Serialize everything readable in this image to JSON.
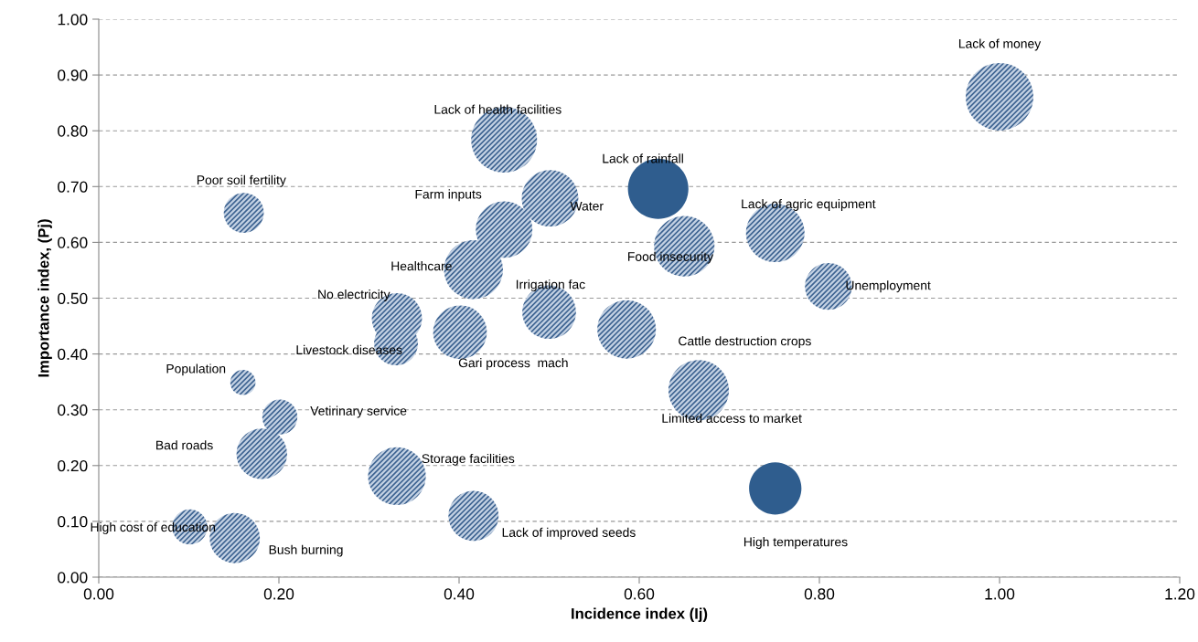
{
  "chart_data": {
    "type": "bubble",
    "xlabel": "Incidence index (Ij)",
    "ylabel": "Importance index, (Pj)",
    "x": [
      0.45,
      0.161,
      0.45,
      0.501,
      0.416,
      0.331,
      0.33,
      0.401,
      0.5,
      0.16,
      0.201,
      0.181,
      0.331,
      0.416,
      0.101,
      0.151,
      1.0,
      0.621,
      0.65,
      0.751,
      0.81,
      0.586,
      0.666,
      0.751
    ],
    "values": [
      0.784,
      0.653,
      0.623,
      0.679,
      0.551,
      0.464,
      0.419,
      0.439,
      0.475,
      0.349,
      0.287,
      0.221,
      0.181,
      0.11,
      0.09,
      0.07,
      0.861,
      0.696,
      0.593,
      0.617,
      0.521,
      0.444,
      0.335,
      0.159
    ],
    "sizes": [
      0.95,
      0.35,
      0.7,
      0.7,
      0.76,
      0.55,
      0.42,
      0.63,
      0.63,
      0.14,
      0.27,
      0.56,
      0.73,
      0.55,
      0.27,
      0.55,
      1,
      0.8,
      0.8,
      0.75,
      0.48,
      0.75,
      0.8,
      0.6
    ],
    "value_labels": [
      "Lack of health facilities",
      "Poor soil fertility",
      "Farm inputs",
      "Water",
      "Healthcare",
      "No electricity",
      "Livestock diseases",
      "Gari process  mach",
      "Irrigation fac",
      "Population",
      "Vetirinary service",
      "Bad roads",
      "Storage facilities",
      "Lack of improved seeds",
      "High cost of education",
      "Bush burning",
      "Lack of money",
      "Lack of rainfall",
      "Food insecurity",
      "Lack of agric equipment",
      "Unemployment",
      "Cattle destruction crops",
      "Limited access to market",
      "High temperatures"
    ],
    "colors": [
      "#c3d1e3",
      "#c3d1e3",
      "#c3d1e3",
      "#c3d1e3",
      "#c3d1e3",
      "#c3d1e3",
      "#c3d1e3",
      "#c3d1e3",
      "#c3d1e3",
      "#c3d1e3",
      "#c3d1e3",
      "#c3d1e3",
      "#c3d1e3",
      "#c3d1e3",
      "#c3d1e3",
      "#c3d1e3",
      "#c3d1e3",
      "#2f5d8e",
      "#c3d1e3",
      "#c3d1e3",
      "#c3d1e3",
      "#c3d1e3",
      "#c3d1e3",
      "#2f5d8e"
    ],
    "xlim": [
      0,
      1.2
    ],
    "ylim": [
      0,
      1.0
    ],
    "xticks": [
      {
        "value": 0,
        "label": "0.00"
      },
      {
        "value": 0.2,
        "label": "0.20"
      },
      {
        "value": 0.4,
        "label": "0.40"
      },
      {
        "value": 0.6,
        "label": "0.60"
      },
      {
        "value": 0.8,
        "label": "0.80"
      },
      {
        "value": 1.0,
        "label": "1.00"
      },
      {
        "value": 1.2,
        "label": "1.20"
      }
    ],
    "yticks": [
      {
        "value": 0,
        "label": "0.00"
      },
      {
        "value": 0.1,
        "label": "0.10"
      },
      {
        "value": 0.2,
        "label": "0.20"
      },
      {
        "value": 0.3,
        "label": "0.30"
      },
      {
        "value": 0.4,
        "label": "0.40"
      },
      {
        "value": 0.5,
        "label": "0.50"
      },
      {
        "value": 0.6,
        "label": "0.60"
      },
      {
        "value": 0.7,
        "label": "0.70"
      },
      {
        "value": 0.8,
        "label": "0.80"
      },
      {
        "value": 0.9,
        "label": "0.90"
      },
      {
        "value": 1.0,
        "label": "1.00"
      }
    ],
    "grid": "y"
  }
}
